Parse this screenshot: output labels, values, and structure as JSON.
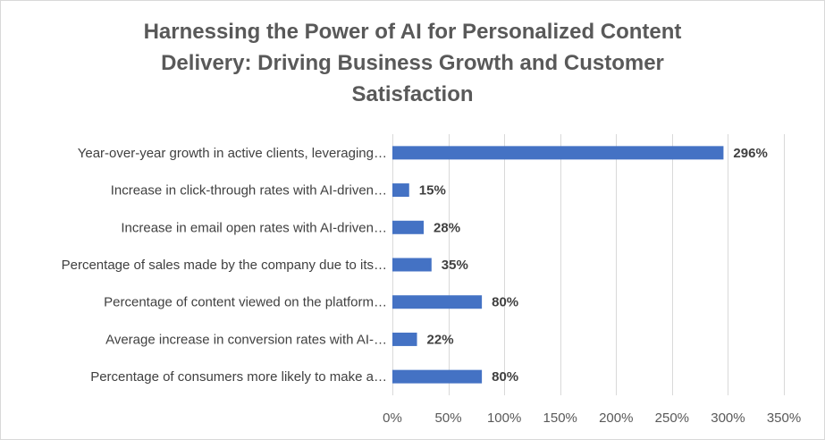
{
  "chart_data": {
    "type": "bar",
    "orientation": "horizontal",
    "title_lines": [
      "Harnessing the Power of AI for Personalized Content",
      "Delivery: Driving Business Growth and Customer",
      "Satisfaction"
    ],
    "categories": [
      "Year-over-year growth in active clients, leveraging…",
      "Increase in click-through rates with AI-driven…",
      "Increase in email open rates with AI-driven…",
      "Percentage of sales made by the company due to its…",
      "Percentage of content viewed on the platform…",
      "Average increase in conversion rates with AI-…",
      "Percentage of consumers more likely to make a…"
    ],
    "values": [
      296,
      15,
      28,
      35,
      80,
      22,
      80
    ],
    "data_labels": [
      "296%",
      "15%",
      "28%",
      "35%",
      "80%",
      "22%",
      "80%"
    ],
    "xlim": [
      0,
      350
    ],
    "x_ticks": [
      0,
      50,
      100,
      150,
      200,
      250,
      300,
      350
    ],
    "x_tick_labels": [
      "0%",
      "50%",
      "100%",
      "150%",
      "200%",
      "250%",
      "300%",
      "350%"
    ],
    "grid": true,
    "legend": false,
    "colors": {
      "bar": "#4472c4",
      "grid": "#d9d9d9",
      "text": "#404040",
      "title": "#595959"
    }
  }
}
